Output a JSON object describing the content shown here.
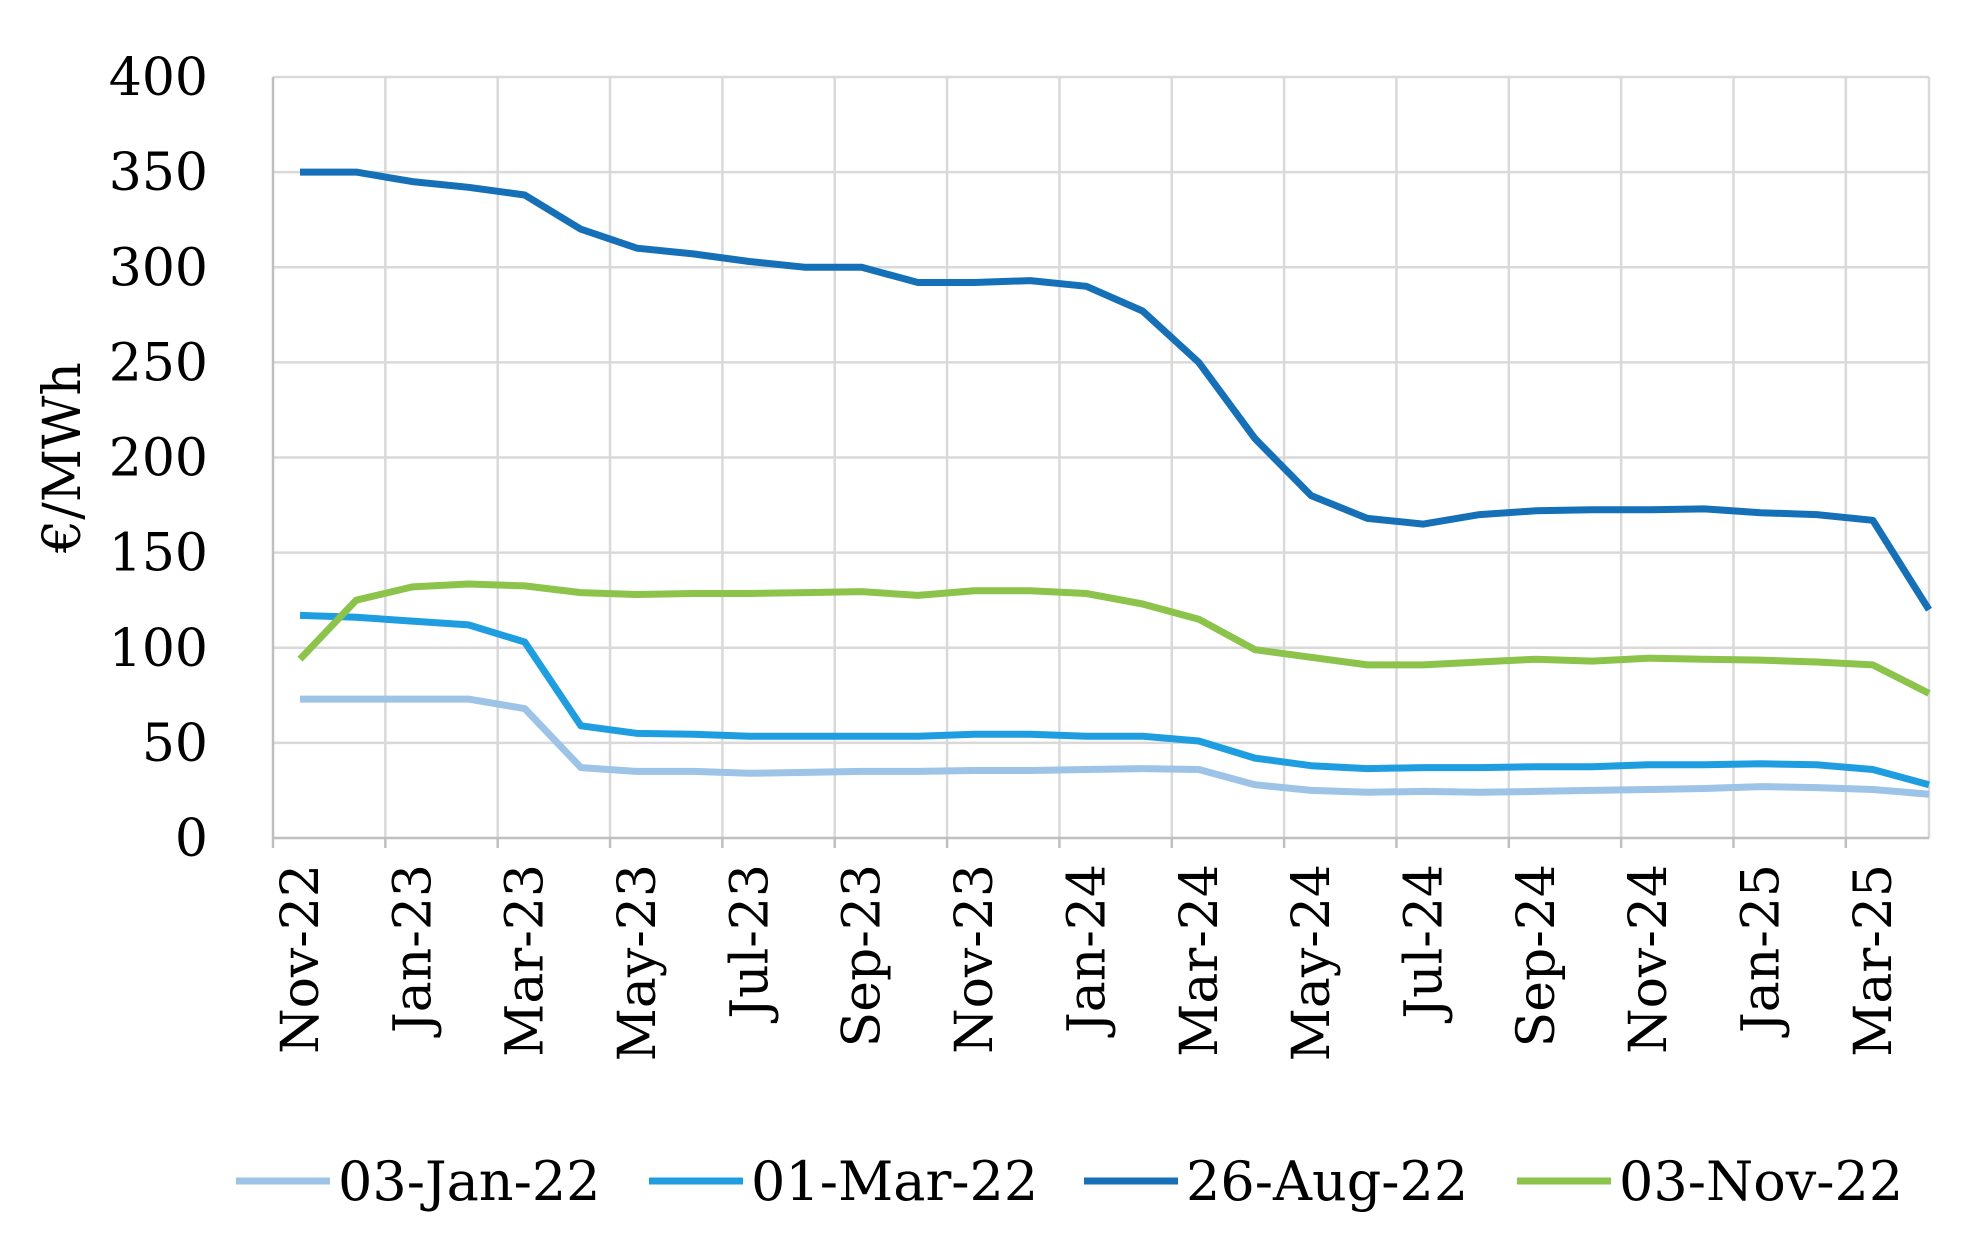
{
  "chart_data": {
    "type": "line",
    "title": "",
    "xlabel": "",
    "ylabel": "€/MWh",
    "ylim": [
      0,
      400
    ],
    "yticks": [
      "0",
      "50",
      "100",
      "150",
      "200",
      "250",
      "300",
      "350",
      "400"
    ],
    "xtick_labels": [
      "Nov-22",
      "Jan-23",
      "Mar-23",
      "May-23",
      "Jul-23",
      "Sep-23",
      "Nov-23",
      "Jan-24",
      "Mar-24",
      "May-24",
      "Jul-24",
      "Sep-24",
      "Nov-24",
      "Jan-25",
      "Mar-25"
    ],
    "x": [
      "Nov-22",
      "Dec-22",
      "Jan-23",
      "Feb-23",
      "Mar-23",
      "Apr-23",
      "May-23",
      "Jun-23",
      "Jul-23",
      "Aug-23",
      "Sep-23",
      "Oct-23",
      "Nov-23",
      "Dec-23",
      "Jan-24",
      "Feb-24",
      "Mar-24",
      "Apr-24",
      "May-24",
      "Jun-24",
      "Jul-24",
      "Aug-24",
      "Sep-24",
      "Oct-24",
      "Nov-24",
      "Dec-24",
      "Jan-25",
      "Feb-25",
      "Mar-25",
      "Apr-25"
    ],
    "grid": true,
    "legend_position": "bottom",
    "series": [
      {
        "name": "03-Jan-22",
        "color": "#9dc3e6",
        "values": [
          73,
          73,
          73,
          73,
          68,
          37,
          35,
          35,
          34,
          34.5,
          35,
          35,
          35.5,
          35.5,
          36,
          36.5,
          36,
          28,
          25,
          24,
          24.5,
          24,
          24.5,
          25,
          25.5,
          26,
          27,
          26.5,
          25.5,
          23
        ]
      },
      {
        "name": "01-Mar-22",
        "color": "#1e9ee0",
        "values": [
          117,
          116,
          114,
          112,
          103,
          59,
          55,
          54.5,
          53.5,
          53.5,
          53.5,
          53.5,
          54.5,
          54.5,
          53.5,
          53.5,
          51,
          42,
          38,
          36.5,
          37,
          37,
          37.5,
          37.5,
          38.5,
          38.5,
          39,
          38.5,
          36,
          28
        ]
      },
      {
        "name": "26-Aug-22",
        "color": "#1570b8",
        "values": [
          350,
          350,
          345,
          342,
          338,
          320,
          310,
          307,
          303,
          300,
          300,
          292,
          292,
          293,
          290,
          277,
          250,
          210,
          180,
          168,
          165,
          170,
          172,
          172.5,
          172.5,
          173,
          171,
          170,
          167,
          120
        ]
      },
      {
        "name": "03-Nov-22",
        "color": "#8cc34b",
        "values": [
          94,
          125,
          132,
          133.5,
          132.5,
          129,
          128,
          128.5,
          128.5,
          129,
          129.5,
          127.5,
          130,
          130,
          128.5,
          123,
          115,
          99,
          95,
          91,
          91,
          92.5,
          94,
          93,
          94.5,
          94,
          93.5,
          92.5,
          91,
          76
        ]
      }
    ]
  }
}
